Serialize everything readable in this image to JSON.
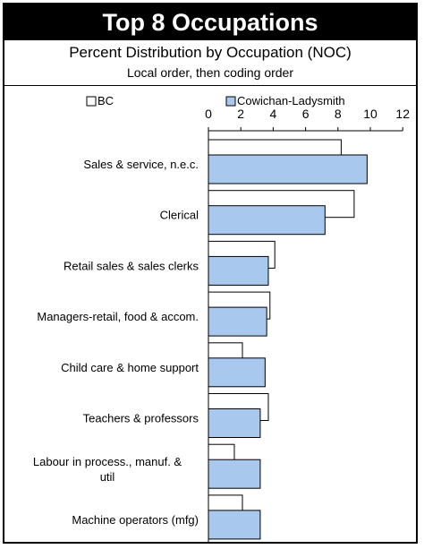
{
  "header": {
    "title": "Top 8 Occupations",
    "subtitle": "Percent Distribution by Occupation (NOC)",
    "subsubtitle": "Local order, then coding order"
  },
  "chart_data": {
    "type": "bar",
    "orientation": "horizontal",
    "categories": [
      "Sales & service, n.e.c.",
      "Clerical",
      "Retail sales & sales clerks",
      "Managers-retail, food & accom.",
      "Child care & home support",
      "Teachers & professors",
      "Labour in process., manuf. & util",
      "Machine operators (mfg)"
    ],
    "series": [
      {
        "name": "BC",
        "color": "#ffffff",
        "values": [
          8.2,
          9.0,
          4.1,
          3.8,
          2.1,
          3.7,
          1.6,
          2.1
        ]
      },
      {
        "name": "Cowichan-Ladysmith",
        "color": "#a9c8ee",
        "values": [
          9.8,
          7.2,
          3.7,
          3.6,
          3.5,
          3.2,
          3.2,
          3.2
        ]
      }
    ],
    "xlim": [
      0,
      12
    ],
    "xticks": [
      "0",
      "2",
      "4",
      "6",
      "8",
      "10",
      "12"
    ],
    "legend_position": "top",
    "grid": false
  }
}
